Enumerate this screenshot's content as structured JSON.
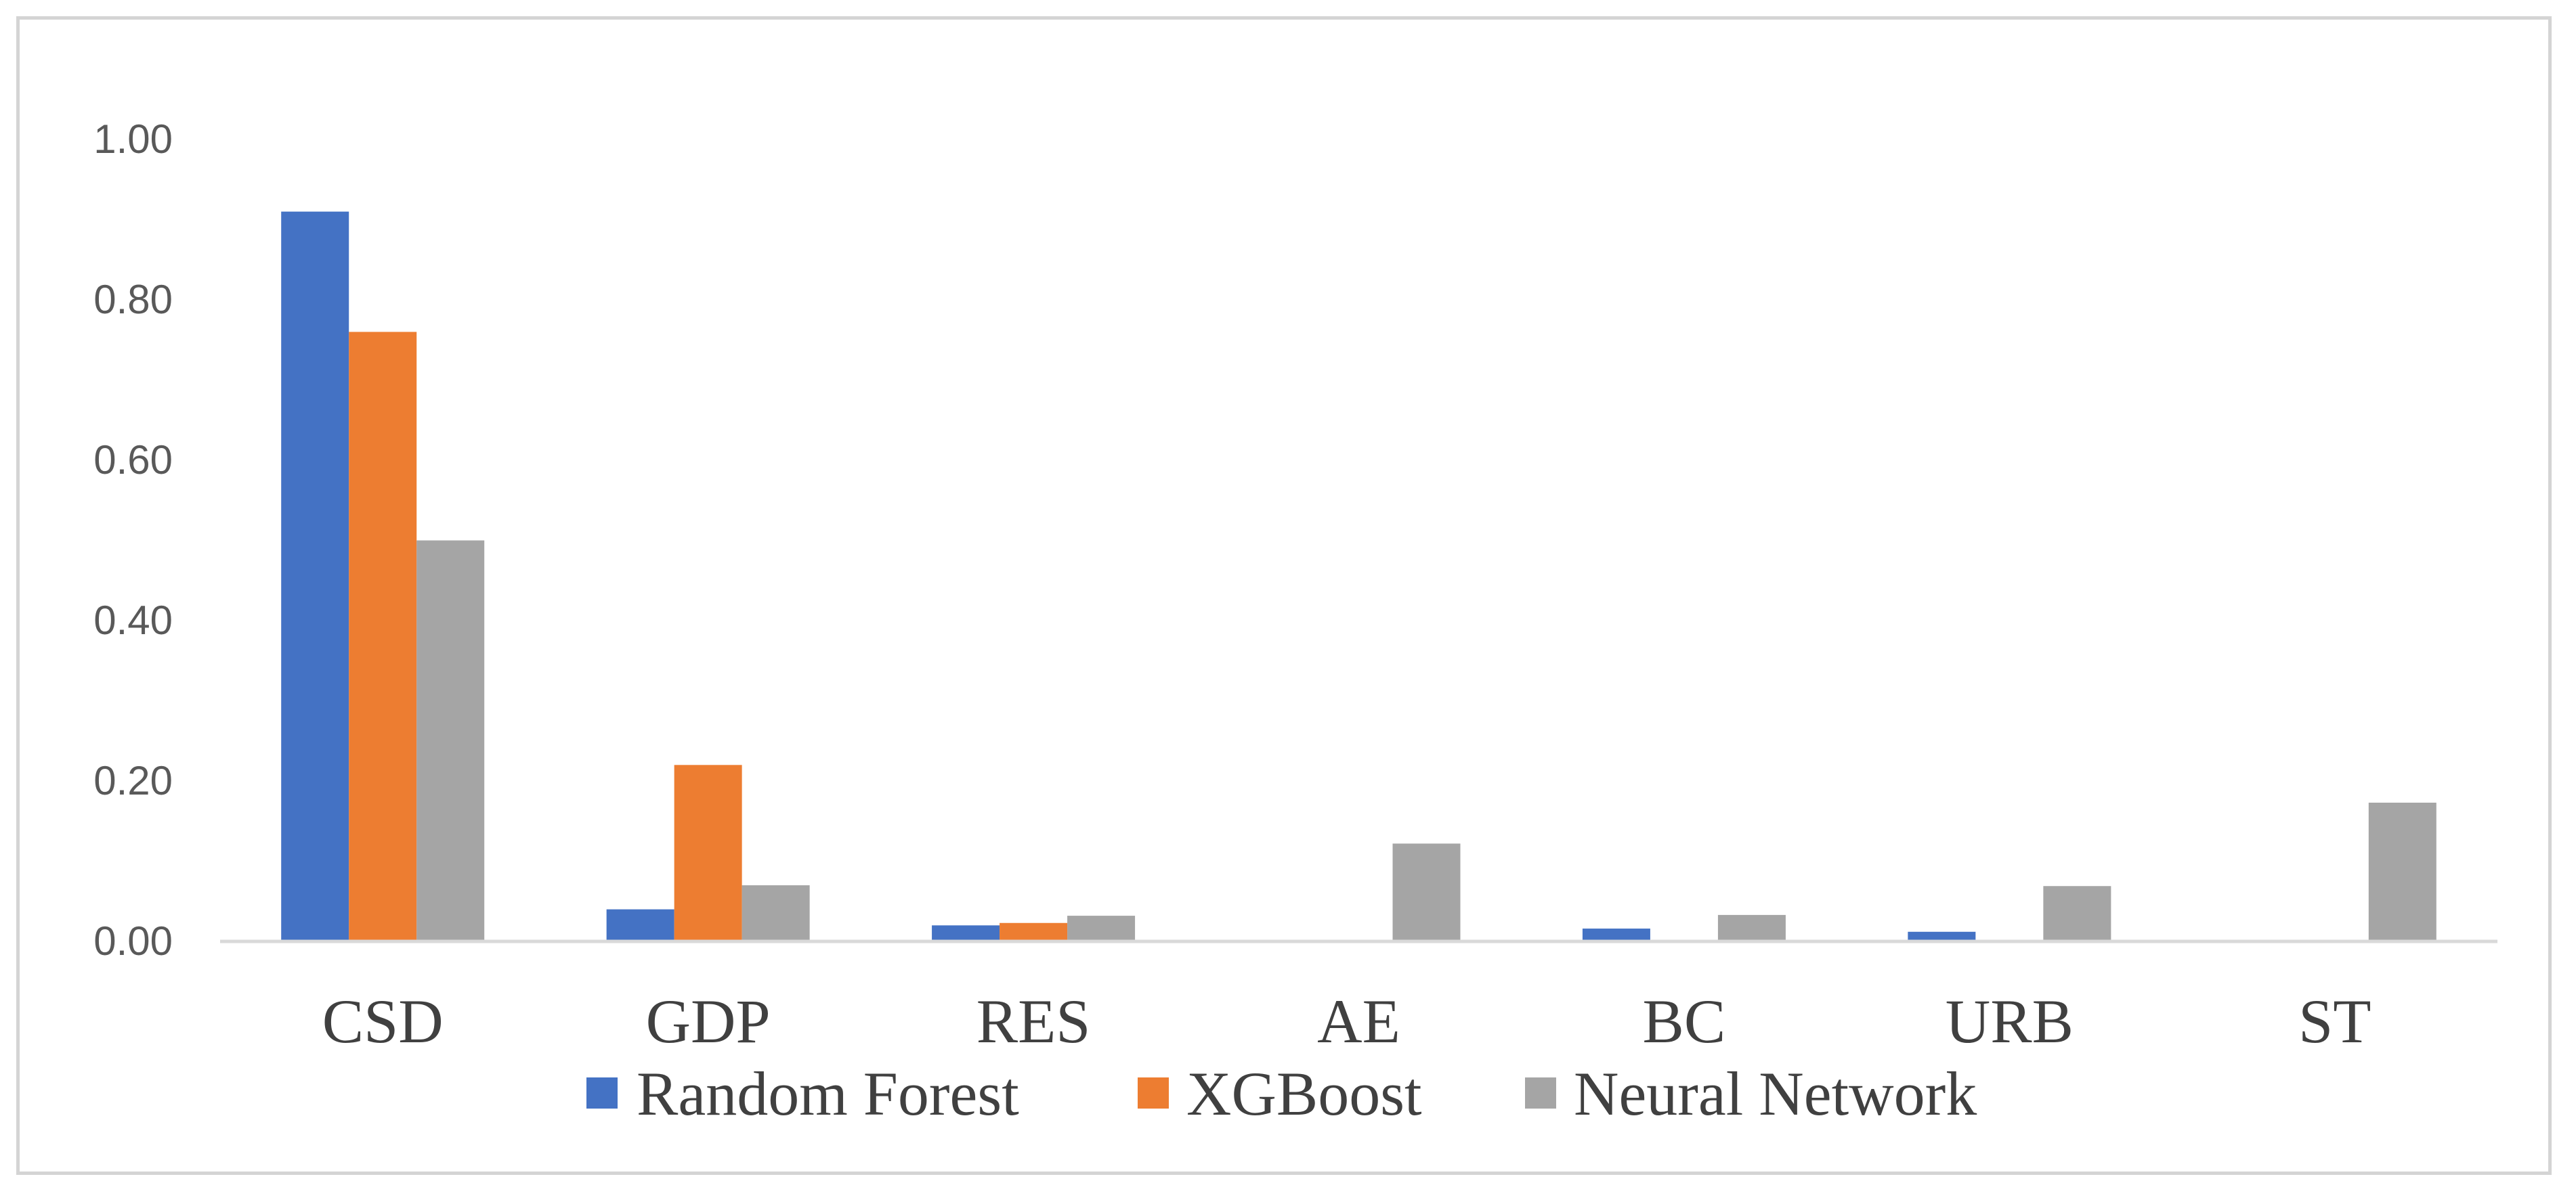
{
  "chart_data": {
    "type": "bar",
    "title": "",
    "xlabel": "",
    "ylabel": "",
    "categories": [
      "CSD",
      "GDP",
      "RES",
      "AE",
      "BC",
      "URB",
      "ST"
    ],
    "series": [
      {
        "name": "Random Forest",
        "color": "#4472C4",
        "values": [
          0.91,
          0.04,
          0.02,
          0.0,
          0.016,
          0.012,
          0.0
        ]
      },
      {
        "name": "XGBoost",
        "color": "#ED7D31",
        "values": [
          0.76,
          0.22,
          0.023,
          0.0,
          0.0,
          0.0,
          0.0
        ]
      },
      {
        "name": "Neural Network",
        "color": "#A5A5A5",
        "values": [
          0.5,
          0.07,
          0.032,
          0.122,
          0.033,
          0.069,
          0.173
        ]
      }
    ],
    "ylim": [
      0,
      1.0
    ],
    "yticks": [
      "0.00",
      "0.20",
      "0.40",
      "0.60",
      "0.80",
      "1.00"
    ],
    "grid": false,
    "legend_position": "bottom"
  }
}
